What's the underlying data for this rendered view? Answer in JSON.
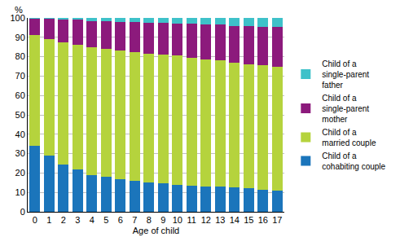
{
  "chart_data": {
    "type": "bar",
    "stacked": true,
    "xlabel": "Age of child",
    "ylabel": "%",
    "categories": [
      "0",
      "1",
      "2",
      "3",
      "4",
      "5",
      "6",
      "7",
      "8",
      "9",
      "10",
      "11",
      "12",
      "13",
      "14",
      "15",
      "16",
      "17"
    ],
    "series": [
      {
        "name": "Child of a cohabiting couple",
        "color": "#1b75bb",
        "values": [
          34,
          29,
          24.5,
          22,
          19,
          18,
          17,
          16,
          15,
          14.5,
          14,
          13.5,
          13,
          13,
          12.5,
          12,
          11.5,
          11
        ]
      },
      {
        "name": "Child of a married couple",
        "color": "#b5d33d",
        "values": [
          57,
          60,
          63,
          64,
          66,
          66,
          66,
          66.5,
          66.5,
          66.5,
          66.5,
          66,
          65.5,
          65,
          64.5,
          64,
          64,
          64
        ]
      },
      {
        "name": "Child of a single-parent mother",
        "color": "#8c1a7c",
        "values": [
          8.5,
          10.5,
          11.5,
          13,
          13.5,
          14.5,
          15,
          15.5,
          16,
          16.5,
          16.5,
          17.5,
          18,
          18.5,
          19,
          20,
          20,
          20.5
        ]
      },
      {
        "name": "Child of a single-parent father",
        "color": "#3ec1c9",
        "values": [
          0.5,
          0.5,
          1,
          1,
          1.5,
          1.5,
          2,
          2,
          2.5,
          2.5,
          3,
          3,
          3.5,
          3.5,
          4,
          4,
          4.5,
          4.5
        ]
      }
    ],
    "ylim": [
      0,
      100
    ],
    "yticks": [
      0,
      10,
      20,
      30,
      40,
      50,
      60,
      70,
      80,
      90,
      100
    ],
    "grid": true,
    "legend": "right"
  }
}
